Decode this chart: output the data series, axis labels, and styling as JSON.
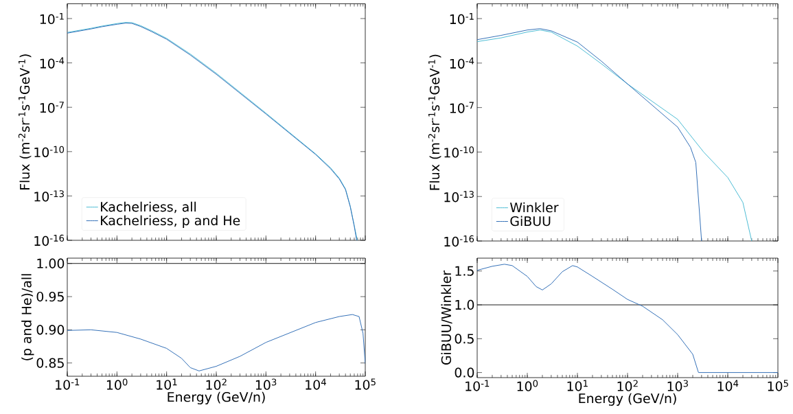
{
  "chart_data": [
    {
      "type": "line",
      "ylabel": "Flux (m$^{-2}$sr$^{-1}$s$^{-1}$GeV$^{-1}$)",
      "log": "xy",
      "xlim": [
        0.1,
        100000
      ],
      "ylim": [
        1e-16,
        1
      ],
      "xticks": [
        {
          "value": 0.1,
          "label": null
        },
        {
          "value": 1,
          "label": null
        },
        {
          "value": 10,
          "label": null
        },
        {
          "value": 100,
          "label": null
        },
        {
          "value": 1000,
          "label": null
        },
        {
          "value": 10000,
          "label": null
        },
        {
          "value": 100000,
          "label": null
        }
      ],
      "yticks": [
        {
          "value": 0.1,
          "label": "10$^{-1}$"
        },
        {
          "value": 0.0001,
          "label": "10$^{-4}$"
        },
        {
          "value": 1e-07,
          "label": "10$^{-7}$"
        },
        {
          "value": 1e-10,
          "label": "10$^{-10}$"
        },
        {
          "value": 1e-13,
          "label": "10$^{-13}$"
        },
        {
          "value": 1e-16,
          "label": "10$^{-16}$"
        }
      ],
      "tick_labels": "y",
      "legend": "bottom left",
      "series": [
        {
          "name": "Kachelriess, all",
          "color": "#4cbcd4",
          "x": [
            0.1,
            0.3,
            0.5,
            1,
            1.5,
            2,
            3,
            5,
            10,
            30,
            100,
            1000,
            10000,
            20000,
            30000,
            40000,
            50000,
            60000,
            69000
          ],
          "values": [
            0.0115,
            0.022,
            0.031,
            0.046,
            0.055,
            0.053,
            0.033,
            0.015,
            0.0046,
            0.0004,
            2e-05,
            4e-08,
            7e-11,
            8e-12,
            1.6e-12,
            3e-13,
            2e-14,
            1e-15,
            1e-16
          ]
        },
        {
          "name": "Kachelriess, p and He",
          "color": "#3470b8",
          "x": [
            0.1,
            0.3,
            0.5,
            1,
            1.5,
            2,
            3,
            5,
            10,
            30,
            100,
            1000,
            10000,
            20000,
            30000,
            40000,
            50000,
            60000,
            67000
          ],
          "values": [
            0.0103,
            0.0198,
            0.028,
            0.041,
            0.049,
            0.047,
            0.029,
            0.013,
            0.004,
            0.00034,
            1.7e-05,
            3.5e-08,
            6.4e-11,
            7e-12,
            1.4e-12,
            2.7e-13,
            1.8e-14,
            9e-16,
            1e-16
          ]
        }
      ]
    },
    {
      "type": "line",
      "ylabel": "Flux (m$^{-2}$sr$^{-1}$s$^{-1}$GeV$^{-1}$)",
      "log": "xy",
      "xlim": [
        0.1,
        100000
      ],
      "ylim": [
        1e-16,
        1
      ],
      "xticks": [
        {
          "value": 0.1,
          "label": null
        },
        {
          "value": 1,
          "label": null
        },
        {
          "value": 10,
          "label": null
        },
        {
          "value": 100,
          "label": null
        },
        {
          "value": 1000,
          "label": null
        },
        {
          "value": 10000,
          "label": null
        },
        {
          "value": 100000,
          "label": null
        }
      ],
      "yticks": [
        {
          "value": 0.1,
          "label": "10$^{-1}$"
        },
        {
          "value": 0.0001,
          "label": "10$^{-4}$"
        },
        {
          "value": 1e-07,
          "label": "10$^{-7}$"
        },
        {
          "value": 1e-10,
          "label": "10$^{-10}$"
        },
        {
          "value": 1e-13,
          "label": "10$^{-13}$"
        },
        {
          "value": 1e-16,
          "label": "10$^{-16}$"
        }
      ],
      "tick_labels": "y",
      "legend": "bottom left",
      "series": [
        {
          "name": "Winkler",
          "color": "#4cbcd4",
          "x": [
            0.1,
            0.3,
            1,
            1.8,
            3,
            10,
            30,
            100,
            1000,
            3300,
            10000,
            20000,
            30000
          ],
          "values": [
            0.0028,
            0.005,
            0.0124,
            0.017,
            0.0124,
            0.0014,
            9e-05,
            3.9e-06,
            1.6e-08,
            1e-10,
            1.9e-12,
            4e-14,
            1e-16
          ]
        },
        {
          "name": "GiBUU",
          "color": "#3470b8",
          "x": [
            0.1,
            0.3,
            1,
            1.8,
            3,
            10,
            30,
            100,
            1000,
            1800,
            2300,
            3000
          ],
          "values": [
            0.0038,
            0.0074,
            0.017,
            0.021,
            0.015,
            0.0026,
            0.000135,
            3.9e-06,
            4.8e-09,
            2.1e-10,
            2e-11,
            1e-16
          ]
        }
      ]
    },
    {
      "type": "line",
      "xlabel": "Energy (GeV/n)",
      "ylabel": "(p and He)/all",
      "log": "x",
      "xlim": [
        0.1,
        100000
      ],
      "ylim": [
        0.83,
        1.008
      ],
      "xticks": [
        {
          "value": 0.1,
          "label": "10$^{-1}$"
        },
        {
          "value": 1,
          "label": "10$^{0}$"
        },
        {
          "value": 10,
          "label": "10$^{1}$"
        },
        {
          "value": 100,
          "label": "10$^{2}$"
        },
        {
          "value": 1000,
          "label": "10$^{3}$"
        },
        {
          "value": 10000,
          "label": "10$^{4}$"
        },
        {
          "value": 100000,
          "label": "10$^{5}$"
        }
      ],
      "yticks": [
        0.85,
        {
          "value": 0.9,
          "label": "0.90"
        },
        0.95,
        {
          "value": 1,
          "label": "1.00"
        }
      ],
      "ref_lines": [
        {
          "axis": "y",
          "value": 1,
          "color": "#000000"
        }
      ],
      "series": [
        {
          "color": "#3470b8",
          "x": [
            0.1,
            0.3,
            1,
            3,
            10,
            20,
            30,
            45,
            100,
            300,
            1000,
            10000,
            30000,
            55000,
            75000,
            90000,
            100000
          ],
          "values": [
            0.899,
            0.9,
            0.896,
            0.886,
            0.872,
            0.857,
            0.843,
            0.838,
            0.845,
            0.86,
            0.881,
            0.911,
            0.92,
            0.923,
            0.92,
            0.895,
            0.849
          ]
        }
      ]
    },
    {
      "type": "line",
      "xlabel": "Energy (GeV/n)",
      "ylabel": "GiBUU/Winkler",
      "log": "x",
      "xlim": [
        0.1,
        100000
      ],
      "ylim": [
        -0.075,
        1.69
      ],
      "xticks": [
        {
          "value": 0.1,
          "label": "10$^{-1}$"
        },
        {
          "value": 1,
          "label": "10$^{0}$"
        },
        {
          "value": 10,
          "label": "10$^{1}$"
        },
        {
          "value": 100,
          "label": "10$^{2}$"
        },
        {
          "value": 1000,
          "label": "10$^{3}$"
        },
        {
          "value": 10000,
          "label": "10$^{4}$"
        },
        {
          "value": 100000,
          "label": "10$^{5}$"
        }
      ],
      "yticks": [
        {
          "value": 0,
          "label": "0.0"
        },
        0.5,
        {
          "value": 1,
          "label": "1.0"
        },
        1.5
      ],
      "ref_lines": [
        {
          "axis": "y",
          "value": 1,
          "color": "#000000"
        }
      ],
      "series": [
        {
          "color": "#3470b8",
          "x": [
            0.1,
            0.2,
            0.35,
            0.5,
            1,
            1.5,
            2,
            3,
            5,
            8,
            10,
            20,
            50,
            100,
            200,
            500,
            1000,
            2000,
            2600,
            100000
          ],
          "values": [
            1.51,
            1.57,
            1.6,
            1.58,
            1.42,
            1.27,
            1.22,
            1.31,
            1.49,
            1.58,
            1.56,
            1.42,
            1.23,
            1.08,
            0.98,
            0.78,
            0.56,
            0.27,
            0,
            0
          ]
        }
      ]
    }
  ]
}
